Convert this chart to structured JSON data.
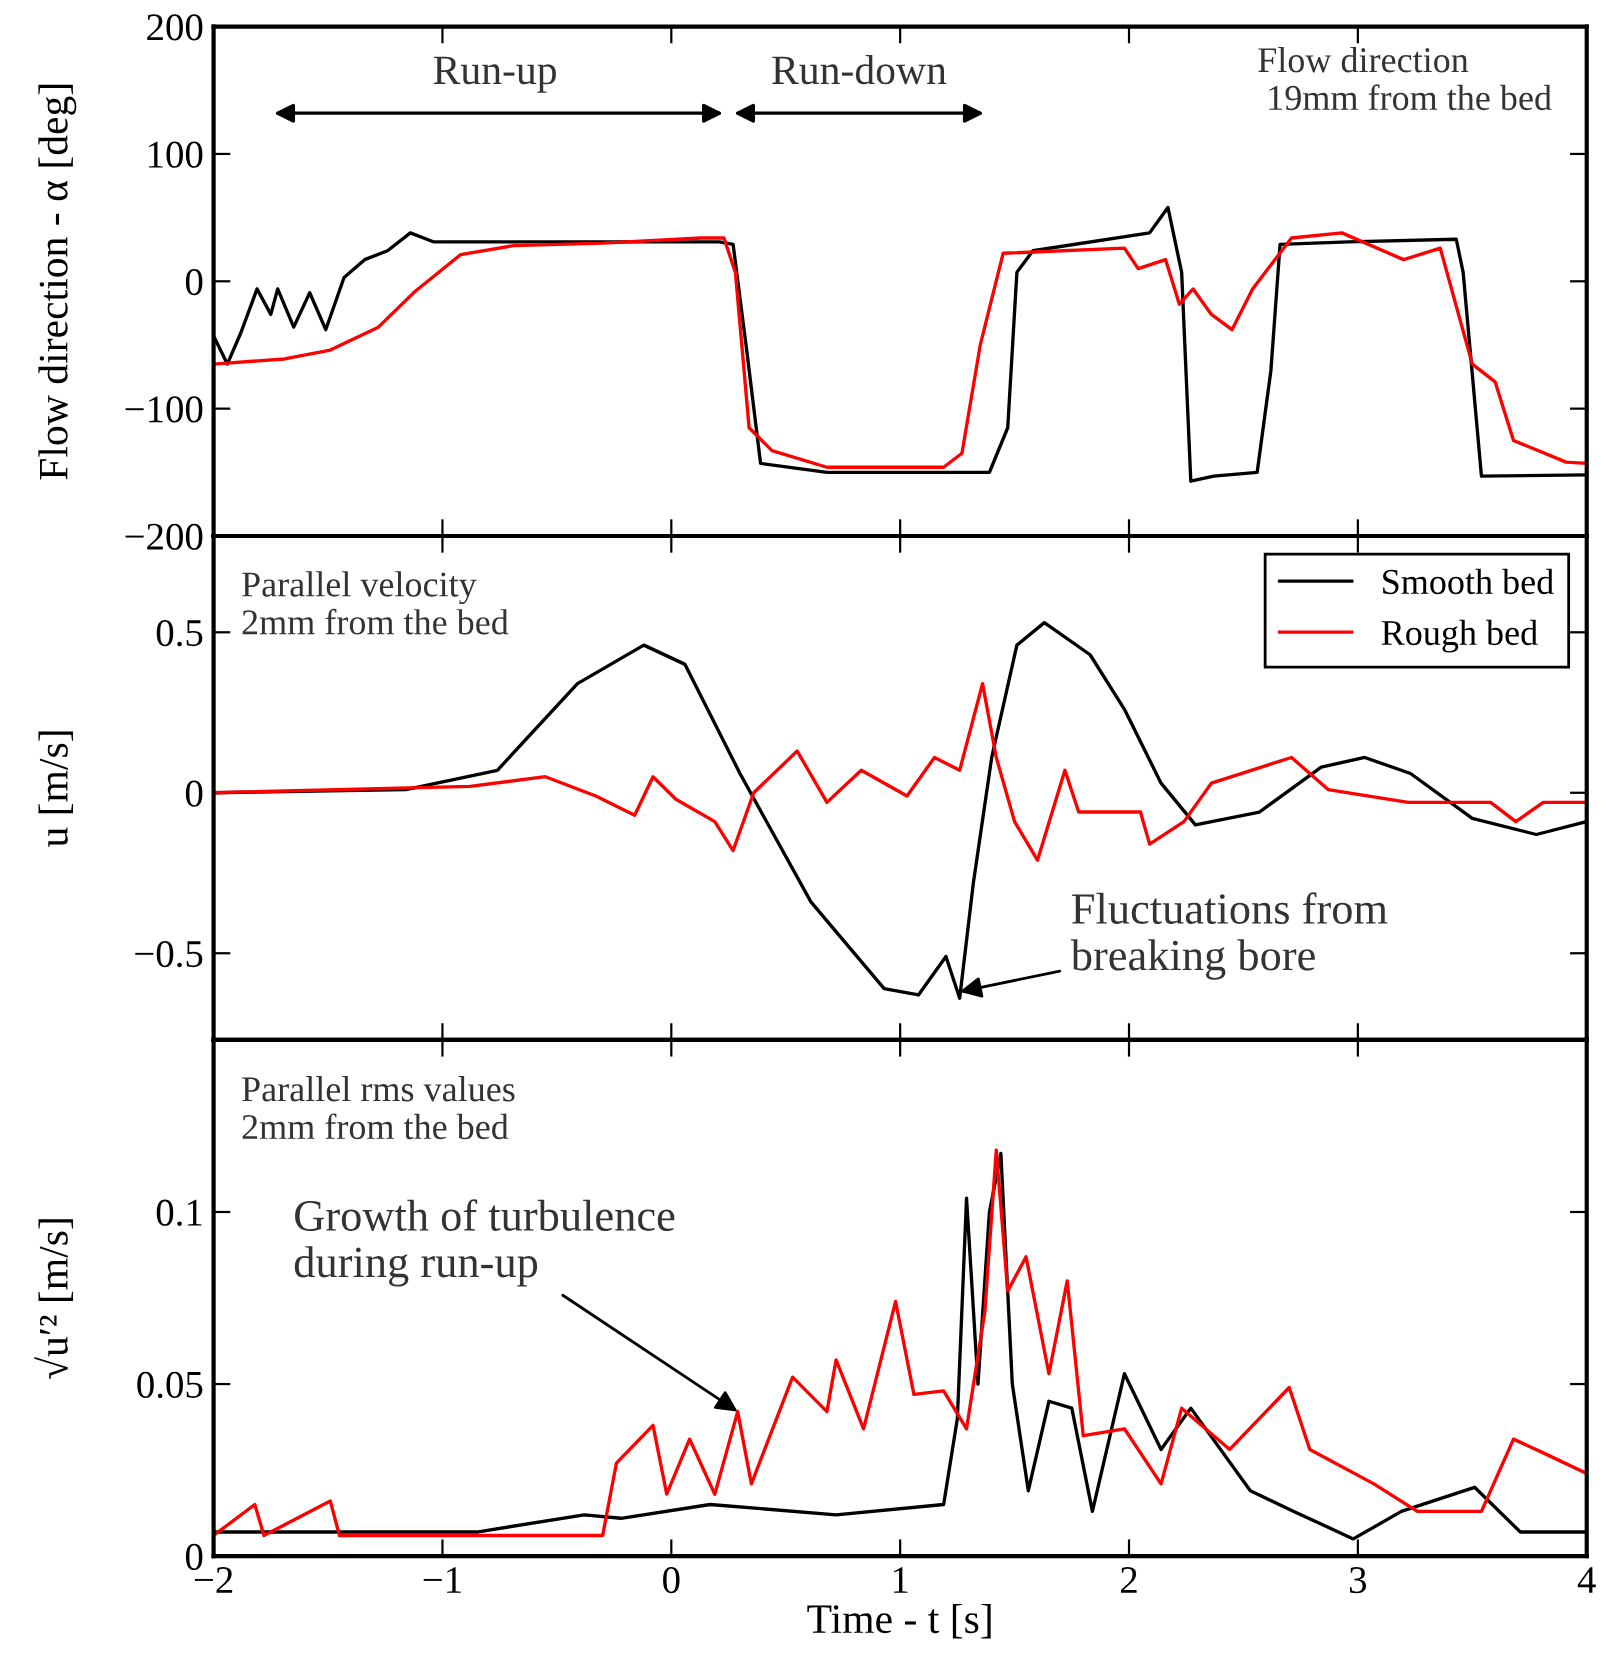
{
  "chart_data": [
    {
      "type": "line",
      "ylabel": "Flow direction - α [deg]",
      "subtitle": "Flow direction\n 19mm from the bed",
      "xlim": [
        -2,
        4
      ],
      "ylim": [
        -200,
        200
      ],
      "yticks": [
        {
          "value": -200,
          "label": "−200"
        },
        {
          "value": -100,
          "label": "−100"
        },
        0,
        100,
        200
      ],
      "tick_labels": "y",
      "grid": false,
      "annotations": [
        "Run-up",
        "Run-down"
      ],
      "series": [
        {
          "color": "#000000",
          "x": [
            -2.0,
            -1.94,
            -1.88,
            -1.81,
            -1.75,
            -1.72,
            -1.65,
            -1.58,
            -1.51,
            -1.43,
            -1.34,
            -1.24,
            -1.14,
            -1.04,
            0.21,
            0.27,
            0.33,
            0.39,
            0.68,
            1.39,
            1.47,
            1.51,
            1.58,
            2.09,
            2.17,
            2.23,
            2.27,
            2.37,
            2.56,
            2.62,
            2.66,
            2.96,
            3.43,
            3.46,
            3.54,
            4.0
          ],
          "values": [
            -43,
            -65,
            -40,
            -6,
            -26,
            -6,
            -36,
            -9,
            -38,
            3,
            17,
            24,
            38,
            31,
            31,
            29,
            -55,
            -143,
            -150,
            -150,
            -115,
            7,
            24,
            38,
            58,
            7,
            -157,
            -153,
            -150,
            -70,
            29,
            31,
            33,
            7,
            -153,
            -152
          ]
        },
        {
          "color": "#ff0000",
          "x": [
            -2.0,
            -1.69,
            -1.49,
            -1.28,
            -1.12,
            -0.92,
            -0.69,
            -0.3,
            0.13,
            0.23,
            0.28,
            0.34,
            0.44,
            0.68,
            1.19,
            1.27,
            1.35,
            1.45,
            1.98,
            2.04,
            2.16,
            2.22,
            2.28,
            2.36,
            2.45,
            2.54,
            2.71,
            2.93,
            3.2,
            3.36,
            3.5,
            3.6,
            3.68,
            3.91,
            4.0
          ],
          "values": [
            -65,
            -61,
            -54,
            -36,
            -8,
            21,
            28,
            30,
            34,
            34,
            7,
            -115,
            -133,
            -146,
            -146,
            -135,
            -50,
            22,
            26,
            10,
            17,
            -18,
            -6,
            -26,
            -38,
            -6,
            34,
            38,
            17,
            26,
            -65,
            -79,
            -125,
            -142,
            -143
          ]
        }
      ]
    },
    {
      "type": "line",
      "ylabel": "u [m/s]",
      "subtitle": "Parallel velocity\n2mm from the bed",
      "xlim": [
        -2,
        4
      ],
      "ylim": [
        -0.77,
        0.8
      ],
      "yticks": [
        {
          "value": -0.5,
          "label": "−0.5"
        },
        0,
        0.5
      ],
      "tick_labels": "y",
      "grid": false,
      "legend": "top right",
      "annotations": [
        {
          "text": "Fluctuations from\nbreaking bore",
          "x": 1.26,
          "y": -0.62
        }
      ],
      "series": [
        {
          "name": "Smooth bed",
          "color": "#000000",
          "x": [
            -2.0,
            -1.16,
            -0.76,
            -0.41,
            -0.12,
            0.06,
            0.3,
            0.61,
            0.93,
            1.08,
            1.2,
            1.26,
            1.32,
            1.4,
            1.51,
            1.63,
            1.83,
            1.98,
            2.14,
            2.29,
            2.57,
            2.84,
            3.03,
            3.23,
            3.5,
            3.78,
            4.0
          ],
          "values": [
            0.0,
            0.01,
            0.07,
            0.34,
            0.46,
            0.4,
            0.06,
            -0.34,
            -0.61,
            -0.63,
            -0.51,
            -0.64,
            -0.28,
            0.11,
            0.46,
            0.53,
            0.43,
            0.26,
            0.03,
            -0.1,
            -0.06,
            0.08,
            0.11,
            0.06,
            -0.08,
            -0.13,
            -0.09
          ]
        },
        {
          "name": "Rough bed",
          "color": "#ff0000",
          "x": [
            -2.0,
            -0.88,
            -0.55,
            -0.33,
            -0.16,
            -0.08,
            0.02,
            0.19,
            0.27,
            0.36,
            0.55,
            0.68,
            0.83,
            1.03,
            1.15,
            1.26,
            1.36,
            1.42,
            1.5,
            1.6,
            1.72,
            1.78,
            2.05,
            2.09,
            2.24,
            2.36,
            2.71,
            2.87,
            3.22,
            3.58,
            3.69,
            3.81,
            4.0
          ],
          "values": [
            0.0,
            0.02,
            0.05,
            -0.01,
            -0.07,
            0.05,
            -0.02,
            -0.09,
            -0.18,
            0.0,
            0.13,
            -0.03,
            0.07,
            -0.01,
            0.11,
            0.07,
            0.34,
            0.11,
            -0.09,
            -0.21,
            0.07,
            -0.06,
            -0.06,
            -0.16,
            -0.09,
            0.03,
            0.11,
            0.01,
            -0.03,
            -0.03,
            -0.09,
            -0.03,
            -0.03
          ]
        }
      ]
    },
    {
      "type": "line",
      "xlabel": "Time - t [s]",
      "ylabel": "√u′² [m/s]",
      "subtitle": "Parallel rms values\n2mm from the bed",
      "xlim": [
        -2,
        4
      ],
      "ylim": [
        0,
        0.15
      ],
      "xticks": [
        {
          "value": -2,
          "label": "−2"
        },
        {
          "value": -1,
          "label": "−1"
        },
        0,
        1,
        2,
        3,
        4
      ],
      "yticks": [
        0,
        0.05,
        0.1
      ],
      "grid": false,
      "annotations": [
        {
          "text": "Growth of turbulence\nduring run-up",
          "x": 0.29,
          "y": 0.042
        }
      ],
      "series": [
        {
          "color": "#000000",
          "x": [
            -2.0,
            -0.85,
            -0.38,
            -0.22,
            0.17,
            0.72,
            1.19,
            1.25,
            1.29,
            1.34,
            1.39,
            1.44,
            1.49,
            1.56,
            1.65,
            1.75,
            1.84,
            1.98,
            2.14,
            2.27,
            2.53,
            2.72,
            2.98,
            3.19,
            3.51,
            3.71,
            4.0
          ],
          "values": [
            0.007,
            0.007,
            0.012,
            0.011,
            0.015,
            0.012,
            0.015,
            0.04,
            0.104,
            0.05,
            0.1,
            0.117,
            0.05,
            0.019,
            0.045,
            0.043,
            0.013,
            0.053,
            0.031,
            0.043,
            0.019,
            0.013,
            0.005,
            0.013,
            0.02,
            0.007,
            0.007
          ]
        },
        {
          "color": "#ff0000",
          "x": [
            -2.0,
            -1.82,
            -1.78,
            -1.49,
            -1.45,
            -0.3,
            -0.24,
            -0.08,
            -0.02,
            0.08,
            0.19,
            0.29,
            0.35,
            0.53,
            0.68,
            0.72,
            0.84,
            0.98,
            1.06,
            1.19,
            1.29,
            1.37,
            1.42,
            1.47,
            1.55,
            1.65,
            1.73,
            1.8,
            1.98,
            2.14,
            2.23,
            2.44,
            2.7,
            2.79,
            3.07,
            3.26,
            3.54,
            3.68,
            3.81,
            4.0
          ],
          "values": [
            0.006,
            0.015,
            0.006,
            0.016,
            0.006,
            0.006,
            0.027,
            0.038,
            0.018,
            0.034,
            0.018,
            0.042,
            0.021,
            0.052,
            0.042,
            0.057,
            0.037,
            0.074,
            0.047,
            0.048,
            0.037,
            0.071,
            0.118,
            0.077,
            0.087,
            0.053,
            0.08,
            0.035,
            0.037,
            0.021,
            0.043,
            0.031,
            0.049,
            0.031,
            0.021,
            0.013,
            0.013,
            0.034,
            0.03,
            0.024
          ]
        }
      ]
    }
  ]
}
